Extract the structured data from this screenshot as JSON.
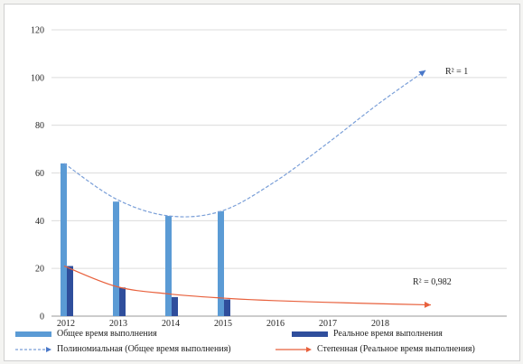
{
  "chart_data": {
    "type": "bar",
    "categories": [
      "2012",
      "2013",
      "2014",
      "2015",
      "2016",
      "2017",
      "2018"
    ],
    "ylim": [
      0,
      120
    ],
    "yticks": [
      0,
      20,
      40,
      60,
      80,
      100,
      120
    ],
    "grid": true,
    "legend_position": "bottom",
    "series": [
      {
        "name": "Общее время выполнения",
        "type": "bar",
        "color": "#5b9bd5",
        "values": [
          64,
          48,
          42,
          44,
          null,
          null,
          null
        ]
      },
      {
        "name": "Реальное время выполнения",
        "type": "bar",
        "color": "#2f4e9c",
        "values": [
          21,
          12,
          8,
          7,
          null,
          null,
          null
        ]
      }
    ],
    "trendlines": [
      {
        "name": "Полиномиальная (Общее время выполнения)",
        "kind": "polynomial",
        "color": "#7a9fd8",
        "x": [
          2012,
          2013,
          2014,
          2015,
          2016,
          2017,
          2018,
          2018.9
        ],
        "y": [
          64,
          49,
          42,
          44,
          56,
          72,
          89,
          103
        ],
        "r2_label": "R² = 1"
      },
      {
        "name": "Степенная (Реальное время выполнения)",
        "kind": "power",
        "color": "#e8603c",
        "x": [
          2012,
          2013,
          2014,
          2015,
          2016,
          2017,
          2018,
          2019
        ],
        "y": [
          21,
          12.4,
          9.3,
          7.6,
          6.5,
          5.8,
          5.2,
          4.7
        ],
        "r2_label": "R² = 0,982"
      }
    ]
  }
}
